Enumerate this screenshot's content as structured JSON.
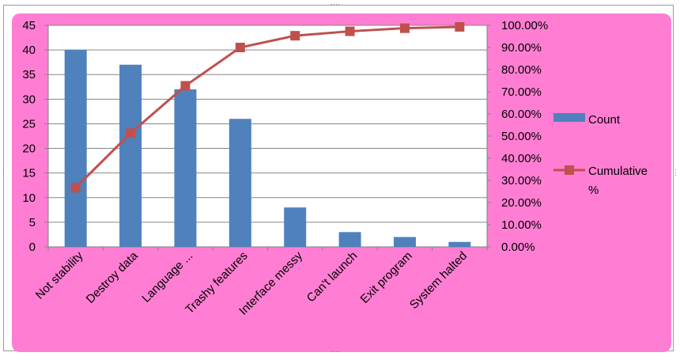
{
  "chart_data": {
    "type": "bar",
    "categories": [
      "Not stability",
      "Destroy data",
      "Language ...",
      "Trashy features",
      "Interface messy",
      "Can't launch",
      "Exit program",
      "System halted"
    ],
    "series": [
      {
        "name": "Count",
        "type": "bar",
        "axis": "left",
        "color": "#4f81bd",
        "values": [
          40,
          37,
          32,
          26,
          8,
          3,
          2,
          1
        ]
      },
      {
        "name": "Cumulative %",
        "type": "line",
        "axis": "right",
        "color": "#c0504d",
        "values": [
          26.7,
          51.3,
          72.7,
          90.0,
          95.3,
          97.3,
          98.7,
          99.3
        ]
      }
    ],
    "y_left": {
      "range": [
        0,
        45
      ],
      "ticks": [
        "0",
        "5",
        "10",
        "15",
        "20",
        "25",
        "30",
        "35",
        "40",
        "45"
      ]
    },
    "y_right": {
      "range": [
        0,
        100
      ],
      "ticks": [
        "0.00%",
        "10.00%",
        "20.00%",
        "30.00%",
        "40.00%",
        "50.00%",
        "60.00%",
        "70.00%",
        "80.00%",
        "90.00%",
        "100.00%"
      ]
    },
    "legend": {
      "position": "right",
      "entries": [
        "Count",
        "Cumulative %"
      ]
    },
    "grid": true,
    "title": "",
    "xlabel": "",
    "ylabel": ""
  },
  "colors": {
    "background": "#ff7ed3",
    "plot_area": "#ffffff",
    "bars": "#4f81bd",
    "line": "#c0504d",
    "marker": "#c0504d"
  }
}
